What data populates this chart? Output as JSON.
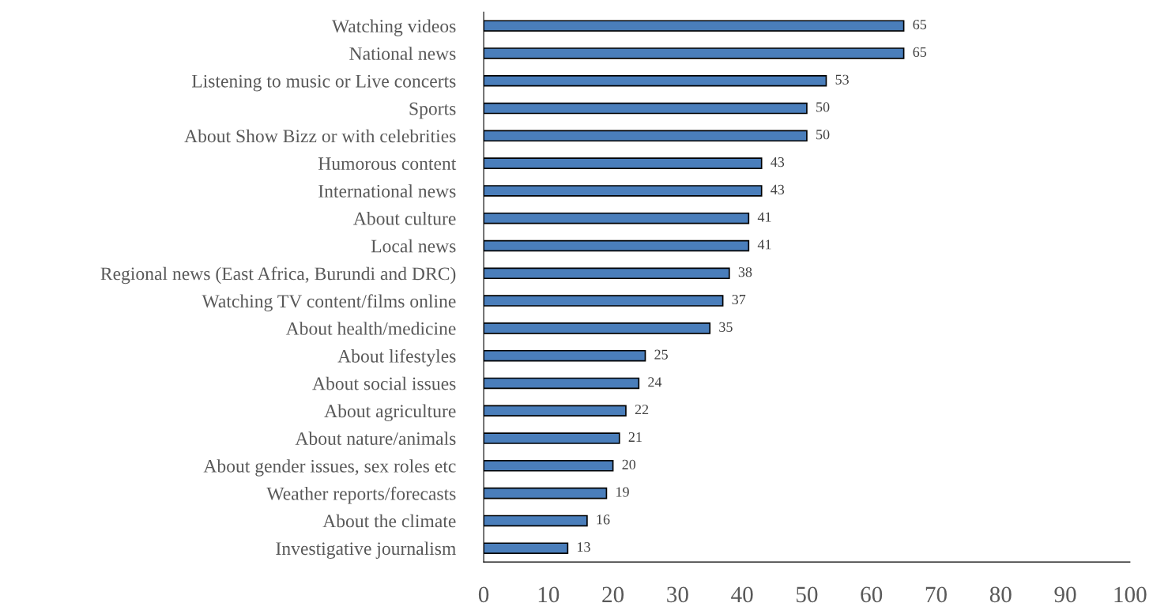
{
  "chart_data": {
    "type": "bar",
    "orientation": "horizontal",
    "categories": [
      "Watching videos",
      "National news",
      "Listening to music or Live concerts",
      "Sports",
      "About Show Bizz or with celebrities",
      "Humorous content",
      "International news",
      "About culture",
      "Local news",
      "Regional news (East Africa, Burundi and DRC)",
      "Watching TV content/films online",
      "About health/medicine",
      "About lifestyles",
      "About social issues",
      "About agriculture",
      "About nature/animals",
      "About gender issues, sex roles etc",
      "Weather reports/forecasts",
      "About the climate",
      "Investigative journalism"
    ],
    "values": [
      65,
      65,
      53,
      50,
      50,
      43,
      43,
      41,
      41,
      38,
      37,
      35,
      25,
      24,
      22,
      21,
      20,
      19,
      16,
      13
    ],
    "color": "#4a7ebb",
    "xlim": [
      0,
      100
    ],
    "xticks": [
      0,
      10,
      20,
      30,
      40,
      50,
      60,
      70,
      80,
      90,
      100
    ],
    "data_labels": true,
    "grid": false,
    "legend": false
  }
}
